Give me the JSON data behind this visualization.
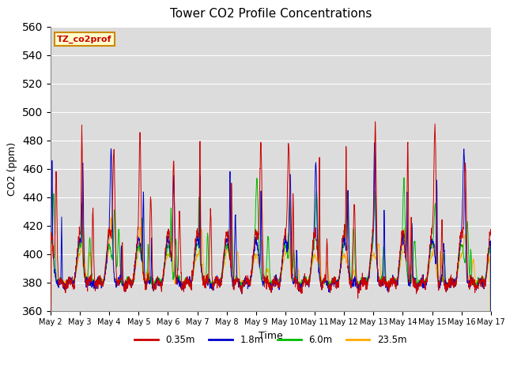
{
  "title": "Tower CO2 Profile Concentrations",
  "xlabel": "Time",
  "ylabel": "CO2 (ppm)",
  "ylim": [
    360,
    560
  ],
  "yticks": [
    360,
    380,
    400,
    420,
    440,
    460,
    480,
    500,
    520,
    540,
    560
  ],
  "series_labels": [
    "0.35m",
    "1.8m",
    "6.0m",
    "23.5m"
  ],
  "series_colors": [
    "#cc0000",
    "#0000cc",
    "#00bb00",
    "#ffaa00"
  ],
  "legend_label": "TZ_co2prof",
  "legend_bg": "#ffffcc",
  "legend_border": "#cc8800",
  "plot_bg": "#dcdcdc",
  "n_days": 15,
  "start_day": 2,
  "base_co2": 385,
  "pts_per_day": 144
}
